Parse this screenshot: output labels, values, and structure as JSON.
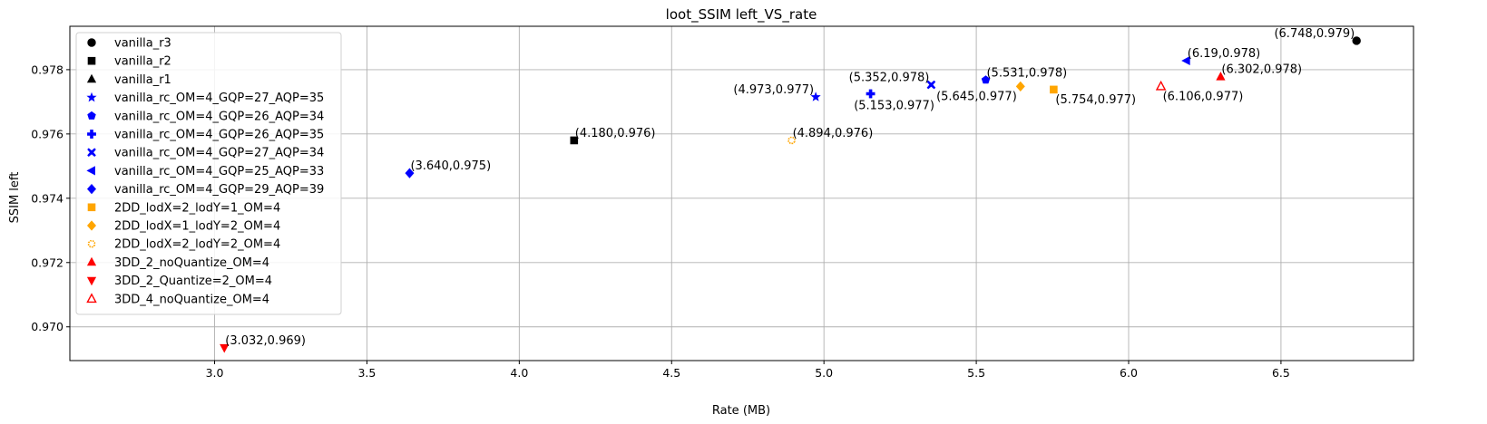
{
  "chart_data": {
    "type": "scatter",
    "title": "loot_SSIM left_VS_rate",
    "xlabel": "Rate (MB)",
    "ylabel": "SSIM left",
    "xlim": [
      2.525,
      6.935
    ],
    "ylim": [
      0.96895,
      0.97935
    ],
    "xticks": [
      3.0,
      3.5,
      4.0,
      4.5,
      5.0,
      5.5,
      6.0,
      6.5
    ],
    "xtick_labels": [
      "3.0",
      "3.5",
      "4.0",
      "4.5",
      "5.0",
      "5.5",
      "6.0",
      "6.5"
    ],
    "yticks": [
      0.97,
      0.972,
      0.974,
      0.976,
      0.978
    ],
    "ytick_labels": [
      "0.970",
      "0.972",
      "0.974",
      "0.976",
      "0.978"
    ],
    "grid": true,
    "legend_position": "upper-left",
    "series": [
      {
        "name": "vanilla_r3",
        "marker": "circle",
        "color": "#000000",
        "filled": true,
        "points": [
          {
            "x": 6.748,
            "y": 0.9789
          }
        ],
        "annotations": [
          "(6.748,0.979)"
        ],
        "annot_align": "left-above"
      },
      {
        "name": "vanilla_r2",
        "marker": "square",
        "color": "#000000",
        "filled": true,
        "points": [
          {
            "x": 4.18,
            "y": 0.9758
          }
        ],
        "annotations": [
          "(4.180,0.976)"
        ],
        "annot_align": "right-above"
      },
      {
        "name": "vanilla_r1",
        "marker": "triangle-up",
        "color": "#000000",
        "filled": true,
        "points": [],
        "annotations": []
      },
      {
        "name": "vanilla_rc_OM=4_GQP=27_AQP=35",
        "marker": "star",
        "color": "#0000ff",
        "filled": true,
        "points": [
          {
            "x": 4.973,
            "y": 0.97715
          }
        ],
        "annotations": [
          "(4.973,0.977)"
        ],
        "annot_align": "left-above"
      },
      {
        "name": "vanilla_rc_OM=4_GQP=26_AQP=34",
        "marker": "pentagon",
        "color": "#0000ff",
        "filled": true,
        "points": [
          {
            "x": 5.531,
            "y": 0.97768
          }
        ],
        "annotations": [
          "(5.531,0.978)"
        ],
        "annot_align": "right-above"
      },
      {
        "name": "vanilla_rc_OM=4_GQP=26_AQP=35",
        "marker": "plus",
        "color": "#0000ff",
        "filled": true,
        "points": [
          {
            "x": 5.153,
            "y": 0.97725
          }
        ],
        "annotations": [
          "(5.153,0.977)"
        ],
        "annot_align": "center-below"
      },
      {
        "name": "vanilla_rc_OM=4_GQP=27_AQP=34",
        "marker": "x",
        "color": "#0000ff",
        "filled": true,
        "points": [
          {
            "x": 5.352,
            "y": 0.97753
          }
        ],
        "annotations": [
          "(5.352,0.978)"
        ],
        "annot_align": "left-above"
      },
      {
        "name": "vanilla_rc_OM=4_GQP=25_AQP=33",
        "marker": "triangle-left",
        "color": "#0000ff",
        "filled": true,
        "points": [
          {
            "x": 6.19,
            "y": 0.97828
          }
        ],
        "annotations": [
          "(6.19,0.978)"
        ],
        "annot_align": "right-above"
      },
      {
        "name": "vanilla_rc_OM=4_GQP=29_AQP=39",
        "marker": "diamond",
        "color": "#0000ff",
        "filled": true,
        "points": [
          {
            "x": 3.64,
            "y": 0.97478
          }
        ],
        "annotations": [
          "(3.640,0.975)"
        ],
        "annot_align": "right-above"
      },
      {
        "name": "2DD_lodX=2_lodY=1_OM=4",
        "marker": "square",
        "color": "#ffa500",
        "filled": true,
        "points": [
          {
            "x": 5.754,
            "y": 0.97738
          }
        ],
        "annotations": [
          "(5.754,0.977)"
        ],
        "annot_align": "right-below"
      },
      {
        "name": "2DD_lodX=1_lodY=2_OM=4",
        "marker": "diamond",
        "color": "#ffa500",
        "filled": true,
        "points": [
          {
            "x": 5.645,
            "y": 0.97748
          }
        ],
        "annotations": [
          "(5.645,0.977)"
        ],
        "annot_align": "left-below"
      },
      {
        "name": "2DD_lodX=2_lodY=2_OM=4",
        "marker": "octagon",
        "color": "#ffa500",
        "filled": false,
        "points": [
          {
            "x": 4.894,
            "y": 0.9758
          }
        ],
        "annotations": [
          "(4.894,0.976)"
        ],
        "annot_align": "right-above"
      },
      {
        "name": "3DD_2_noQuantize_OM=4",
        "marker": "triangle-up",
        "color": "#ff0000",
        "filled": true,
        "points": [
          {
            "x": 6.302,
            "y": 0.97778
          }
        ],
        "annotations": [
          "(6.302,0.978)"
        ],
        "annot_align": "right-above"
      },
      {
        "name": "3DD_2_Quantize=2_OM=4",
        "marker": "triangle-down",
        "color": "#ff0000",
        "filled": true,
        "points": [
          {
            "x": 3.032,
            "y": 0.96935
          }
        ],
        "annotations": [
          "(3.032,0.969)"
        ],
        "annot_align": "right-above"
      },
      {
        "name": "3DD_4_noQuantize_OM=4",
        "marker": "triangle-up",
        "color": "#ff0000",
        "filled": false,
        "points": [
          {
            "x": 6.106,
            "y": 0.97748
          }
        ],
        "annotations": [
          "(6.106,0.977)"
        ],
        "annot_align": "right-below"
      }
    ]
  }
}
